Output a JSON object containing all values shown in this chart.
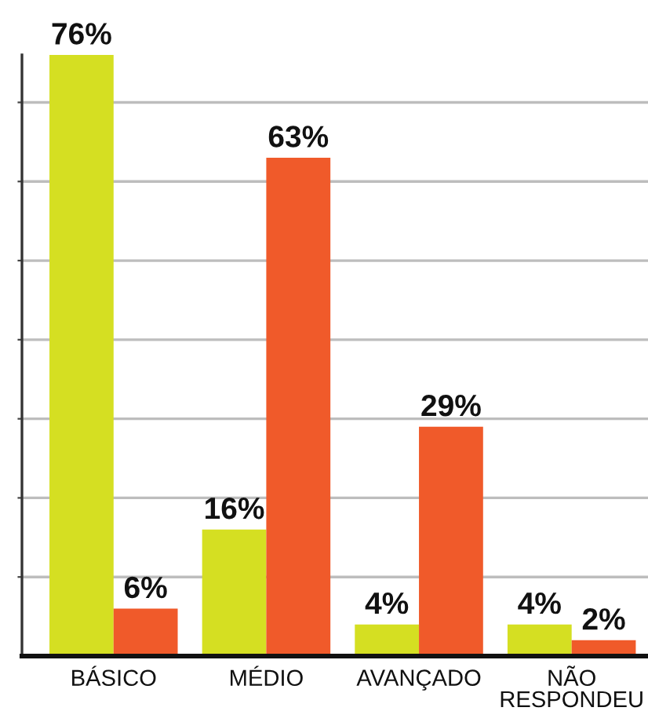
{
  "chart_data": {
    "type": "bar",
    "categories": [
      "BÁSICO",
      "MÉDIO",
      "AVANÇADO",
      "NÃO\nRESPONDEU"
    ],
    "series": [
      {
        "color": "#d5df22",
        "values": [
          76,
          16,
          4,
          4
        ],
        "value_labels": [
          "76%",
          "16%",
          "4%",
          "4%"
        ]
      },
      {
        "color": "#f05a2a",
        "values": [
          6,
          63,
          29,
          2
        ],
        "value_labels": [
          "6%",
          "63%",
          "29%",
          "2%"
        ]
      }
    ],
    "ylim": [
      0,
      76
    ],
    "yticks": [
      {
        "value": 10,
        "label": null
      },
      {
        "value": 20,
        "label": null
      },
      {
        "value": 30,
        "label": null
      },
      {
        "value": 40,
        "label": null
      },
      {
        "value": 50,
        "label": null
      },
      {
        "value": 60,
        "label": null
      },
      {
        "value": 70,
        "label": null
      }
    ],
    "grid": "y",
    "tick_labels": "x"
  }
}
